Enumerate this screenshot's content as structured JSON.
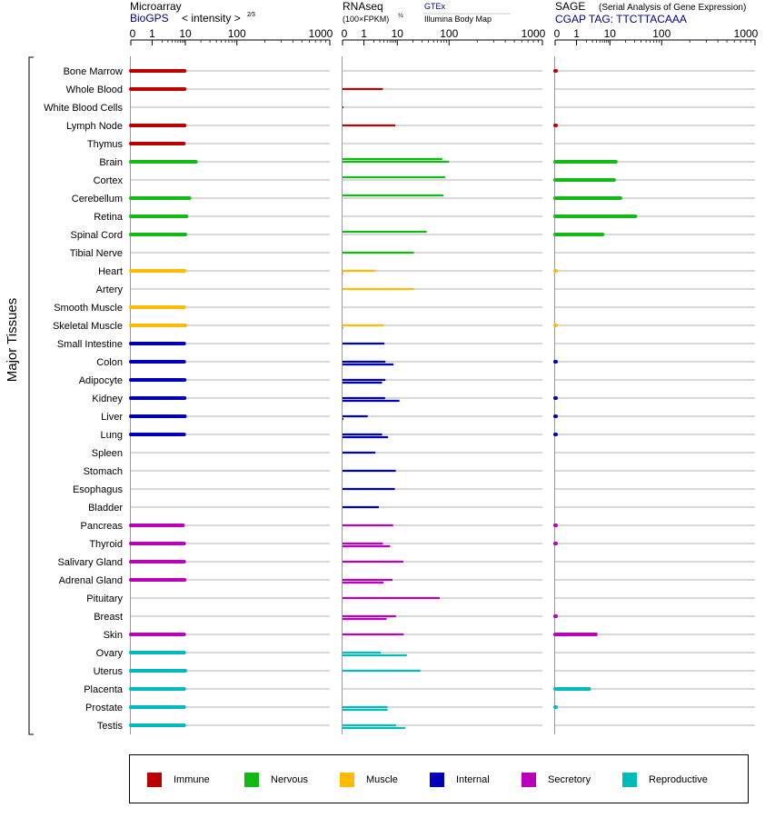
{
  "header": {
    "microarray": {
      "title": "Microarray",
      "source": "BioGPS",
      "scale_label": "< intensity >",
      "scale_exponent": "2⁄3"
    },
    "rnaseq": {
      "title": "RNAseq",
      "scale_label": "(100×FPKM)",
      "scale_exponent": "½",
      "source1": "GTEx",
      "source2": "Illumina Body Map"
    },
    "sage": {
      "title": "SAGE",
      "subtitle": "(Serial Analysis of Gene Expression)",
      "tag": "CGAP TAG: TTCTTACAAA"
    }
  },
  "axis_ticks": [
    "0",
    "1",
    "10",
    "100",
    "1000"
  ],
  "y_title": "Major Tissues",
  "colors": {
    "immune": "#bb0000",
    "nervous": "#11bb11",
    "muscle": "#ffbb00",
    "internal": "#0000bb",
    "secretory": "#bb00bb",
    "reproductive": "#00bbbb",
    "line": "#999999",
    "source": "#000080"
  },
  "legend": [
    {
      "key": "immune",
      "label": "Immune"
    },
    {
      "key": "nervous",
      "label": "Nervous"
    },
    {
      "key": "muscle",
      "label": "Muscle"
    },
    {
      "key": "internal",
      "label": "Internal"
    },
    {
      "key": "secretory",
      "label": "Secretory"
    },
    {
      "key": "reproductive",
      "label": "Reproductive"
    }
  ],
  "chart_data": {
    "type": "bar",
    "orientation": "horizontal",
    "x_scale": "power-transformed intensity",
    "xlim": [
      0,
      1000
    ],
    "categories": [
      "Bone Marrow",
      "Whole Blood",
      "White Blood Cells",
      "Lymph Node",
      "Thymus",
      "Brain",
      "Cortex",
      "Cerebellum",
      "Retina",
      "Spinal Cord",
      "Tibial Nerve",
      "Heart",
      "Artery",
      "Smooth Muscle",
      "Skeletal Muscle",
      "Small Intestine",
      "Colon",
      "Adipocyte",
      "Kidney",
      "Liver",
      "Lung",
      "Spleen",
      "Stomach",
      "Esophagus",
      "Bladder",
      "Pancreas",
      "Thyroid",
      "Salivary Gland",
      "Adrenal Gland",
      "Pituitary",
      "Breast",
      "Skin",
      "Ovary",
      "Uterus",
      "Placenta",
      "Prostate",
      "Testis"
    ],
    "groups": [
      "immune",
      "immune",
      "immune",
      "immune",
      "immune",
      "nervous",
      "nervous",
      "nervous",
      "nervous",
      "nervous",
      "nervous",
      "muscle",
      "muscle",
      "muscle",
      "muscle",
      "internal",
      "internal",
      "internal",
      "internal",
      "internal",
      "internal",
      "internal",
      "internal",
      "internal",
      "internal",
      "secretory",
      "secretory",
      "secretory",
      "secretory",
      "secretory",
      "secretory",
      "secretory",
      "reproductive",
      "reproductive",
      "reproductive",
      "reproductive",
      "reproductive"
    ],
    "series": [
      {
        "name": "Microarray (BioGPS)",
        "values": [
          9.5,
          9.5,
          null,
          9.5,
          9.0,
          16,
          null,
          12,
          10.5,
          10,
          null,
          9.5,
          null,
          9.2,
          10,
          9.2,
          9.2,
          9.5,
          9.5,
          9.7,
          9.2,
          null,
          null,
          null,
          null,
          8.5,
          9.2,
          9.2,
          9.5,
          null,
          null,
          9.2,
          9.2,
          10,
          9.2,
          9.2,
          9.2
        ]
      },
      {
        "name": "RNAseq GTEx",
        "values": [
          null,
          null,
          null,
          null,
          null,
          74,
          84,
          78,
          null,
          37,
          null,
          null,
          null,
          null,
          null,
          null,
          null,
          null,
          null,
          null,
          null,
          null,
          null,
          null,
          null,
          null,
          null,
          null,
          null,
          null,
          null,
          null,
          null,
          null,
          null,
          null,
          null
        ]
      },
      {
        "name": "RNAseq Illumina Body Map",
        "values": [
          null,
          3.7,
          0.02,
          8.7,
          null,
          100,
          null,
          null,
          null,
          null,
          21,
          2.2,
          21,
          null,
          3.9,
          4.1,
          4.4,
          4.4,
          4.3,
          1.3,
          3.5,
          2.2,
          9.0,
          8.4,
          2.8,
          7.5,
          3.7,
          13.1,
          7.2,
          66,
          9.1,
          13.3,
          3.2,
          28,
          null,
          5.1,
          9.1
        ]
      },
      {
        "name": "RNAseq Illumina Body Map (2)",
        "values": [
          null,
          null,
          null,
          null,
          null,
          null,
          null,
          null,
          null,
          null,
          null,
          0.02,
          null,
          null,
          0.02,
          null,
          7.7,
          3.5,
          11,
          0.02,
          5.3,
          null,
          null,
          null,
          null,
          null,
          6.1,
          null,
          3.9,
          null,
          4.8,
          null,
          15.3,
          null,
          null,
          5.1,
          14.2
        ]
      },
      {
        "name": "SAGE",
        "values": [
          0.03,
          null,
          null,
          0.03,
          null,
          13,
          12,
          16,
          31,
          6,
          null,
          0.01,
          null,
          null,
          0.01,
          null,
          0.03,
          null,
          0.03,
          0.03,
          0.03,
          null,
          null,
          null,
          null,
          0.03,
          0.03,
          null,
          null,
          null,
          0.03,
          3.8,
          null,
          null,
          2.4,
          0.03,
          null
        ]
      }
    ]
  }
}
